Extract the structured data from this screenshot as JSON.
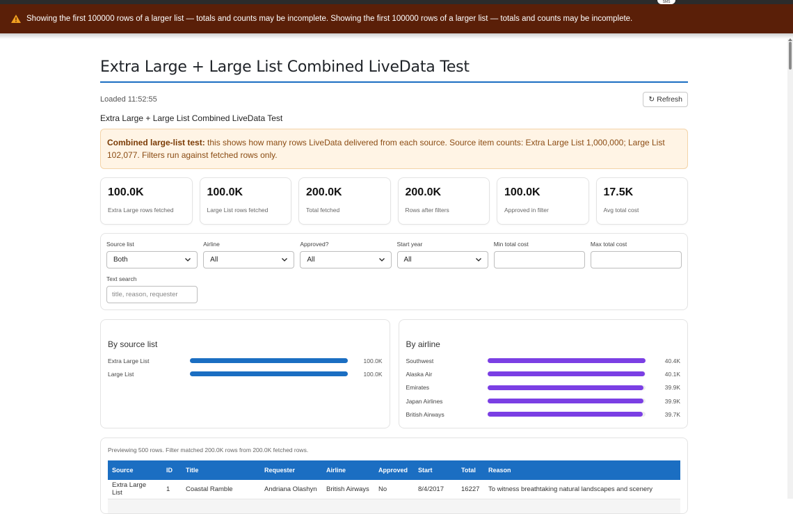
{
  "banner": {
    "message": "Showing the first 100000 rows of a larger list — totals and counts may be incomplete. Showing the first 100000 rows of a larger list — totals and counts may be incomplete."
  },
  "topstrip": {
    "badge": "SMS"
  },
  "page": {
    "title": "Extra Large + Large List Combined LiveData Test",
    "loaded": "Loaded 11:52:55",
    "refresh_label": "Refresh",
    "subtitle": "Extra Large + Large List Combined LiveData Test"
  },
  "alert": {
    "bold": "Combined large-list test:",
    "text": " this shows how many rows LiveData delivered from each source. Source item counts: Extra Large List 1,000,000; Large List 102,077. Filters run against fetched rows only."
  },
  "stats": [
    {
      "value": "100.0K",
      "label": "Extra Large rows fetched"
    },
    {
      "value": "100.0K",
      "label": "Large List rows fetched"
    },
    {
      "value": "200.0K",
      "label": "Total fetched"
    },
    {
      "value": "200.0K",
      "label": "Rows after filters"
    },
    {
      "value": "100.0K",
      "label": "Approved in filter"
    },
    {
      "value": "17.5K",
      "label": "Avg total cost"
    }
  ],
  "filters": {
    "source": {
      "label": "Source list",
      "value": "Both"
    },
    "airline": {
      "label": "Airline",
      "value": "All"
    },
    "approved": {
      "label": "Approved?",
      "value": "All"
    },
    "start_year": {
      "label": "Start year",
      "value": "All"
    },
    "min_cost": {
      "label": "Min total cost",
      "value": ""
    },
    "max_cost": {
      "label": "Max total cost",
      "value": ""
    },
    "text_search": {
      "label": "Text search",
      "placeholder": "title, reason, requester"
    }
  },
  "chart_data": [
    {
      "type": "bar",
      "title": "By source list",
      "categories": [
        "Extra Large List",
        "Large List"
      ],
      "values": [
        100000,
        100000
      ],
      "value_labels": [
        "100.0K",
        "100.0K"
      ],
      "max": 100000,
      "color": "#1b6ec2"
    },
    {
      "type": "bar",
      "title": "By airline",
      "categories": [
        "Southwest",
        "Alaska Air",
        "Emirates",
        "Japan Airlines",
        "British Airways"
      ],
      "values": [
        40400,
        40100,
        39900,
        39900,
        39700
      ],
      "value_labels": [
        "40.4K",
        "40.1K",
        "39.9K",
        "39.9K",
        "39.7K"
      ],
      "max": 40400,
      "color": "#7b3fe4"
    }
  ],
  "table": {
    "preview": "Previewing 500 rows. Filter matched 200.0K rows from 200.0K fetched rows.",
    "headers": [
      "Source",
      "ID",
      "Title",
      "Requester",
      "Airline",
      "Approved",
      "Start",
      "Total",
      "Reason"
    ],
    "rows": [
      [
        "Extra Large List",
        "1",
        "Coastal Ramble",
        "Andriana Olashyn",
        "British Airways",
        "No",
        "8/4/2017",
        "16227",
        "To witness breathtaking natural landscapes and scenery"
      ],
      [
        "",
        "",
        "",
        "",
        "",
        "",
        "",
        "",
        ""
      ]
    ]
  }
}
